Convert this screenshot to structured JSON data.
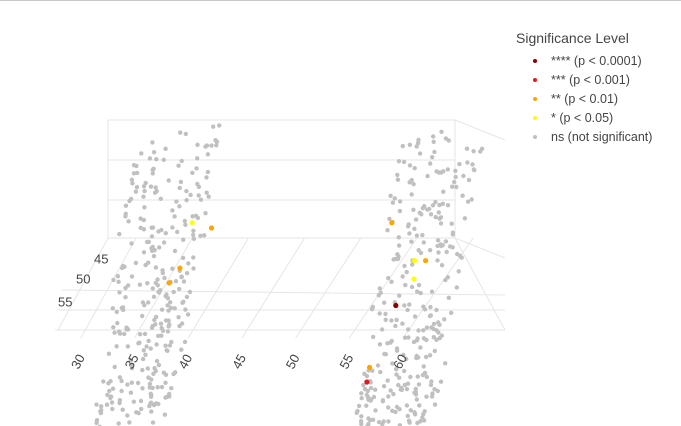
{
  "chart_data": {
    "type": "scatter3d",
    "title": "",
    "xaxis": {
      "title": "",
      "ticks": [
        "30",
        "35",
        "40",
        "45",
        "50",
        "55",
        "60"
      ],
      "range": [
        27.5,
        64
      ]
    },
    "yaxis": {
      "title": "",
      "ticks": [
        "45",
        "50",
        "55"
      ]
    },
    "zaxis": {
      "title": "",
      "ticks": []
    },
    "legend": {
      "title": "Significance Level",
      "placement": "top-right",
      "items": [
        {
          "label": "**** (p < 0.0001)",
          "color": "#8b0000"
        },
        {
          "label": "*** (p < 0.001)",
          "color": "#e31a1c"
        },
        {
          "label": "** (p < 0.01)",
          "color": "#ffa500"
        },
        {
          "label": "* (p < 0.05)",
          "color": "#ffff00"
        },
        {
          "label": "ns (not significant)",
          "color": "#c0c0c0"
        }
      ]
    },
    "grid": true,
    "highlighted_points": [
      {
        "level": "**",
        "x": 39.2,
        "y": 49.5,
        "z": 0.95
      },
      {
        "level": "*",
        "x": 36.5,
        "y": 47.0,
        "z": 0.65
      },
      {
        "level": "**",
        "x": 34.4,
        "y": 47.0,
        "z": 0.12
      },
      {
        "level": "**",
        "x": 35.0,
        "y": 46.0,
        "z": 0.12
      },
      {
        "level": "**",
        "x": 54.5,
        "y": 47.0,
        "z": 0.65
      },
      {
        "level": "*",
        "x": 57.0,
        "y": 48.0,
        "z": 0.45
      },
      {
        "level": "*",
        "x": 57.4,
        "y": 49.0,
        "z": 0.42
      },
      {
        "level": "**",
        "x": 58.0,
        "y": 48.0,
        "z": 0.45
      },
      {
        "level": "****",
        "x": 55.3,
        "y": 48.0,
        "z": 0.05
      },
      {
        "level": "**",
        "x": 54.7,
        "y": 52.0,
        "z": 0.02
      },
      {
        "level": "***",
        "x": 54.9,
        "y": 53.0,
        "z": 0.02
      }
    ]
  }
}
